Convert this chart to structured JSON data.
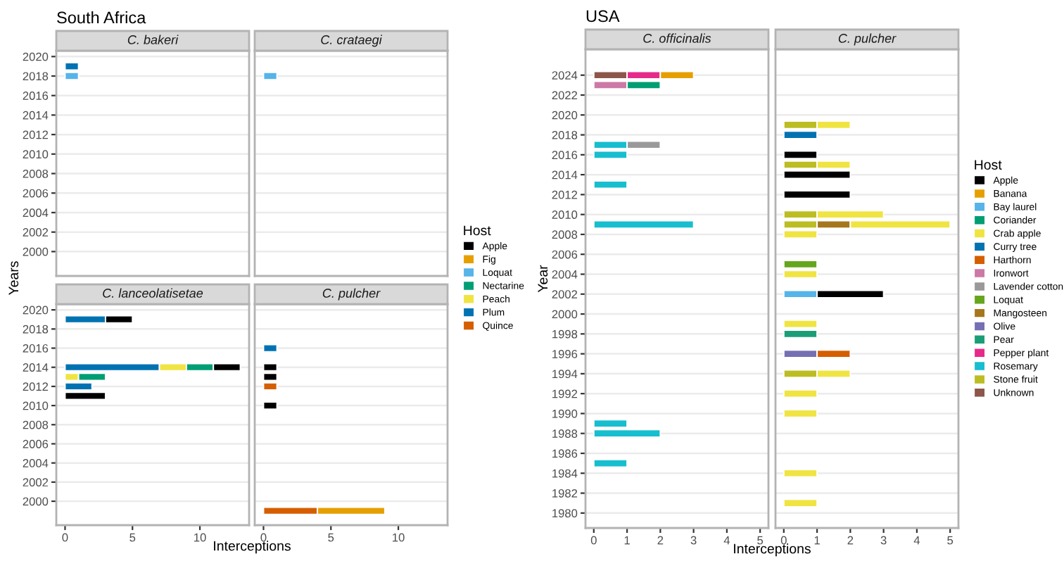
{
  "chart_data": [
    {
      "type": "bar",
      "orientation": "horizontal",
      "stacked": true,
      "title": "C. bakeri",
      "annotations": [
        "South Africa"
      ],
      "legend": "right",
      "legend_title": "Host",
      "x": [
        2019,
        2018
      ],
      "xlim": [
        -0.65,
        13.65
      ],
      "xticks": [
        0,
        5,
        10
      ],
      "ylim": [
        1997.5,
        2020.6
      ],
      "yticks": [
        2000,
        2002,
        2004,
        2006,
        2008,
        2010,
        2012,
        2014,
        2016,
        2018,
        2020
      ],
      "grid": "y",
      "tick_labels": "y",
      "series": [
        {
          "name": "Quince",
          "color": "#d55e00",
          "values": [
            null,
            null
          ]
        },
        {
          "name": "Plum",
          "color": "#0072b2",
          "values": [
            1,
            null
          ]
        },
        {
          "name": "Peach",
          "color": "#f0e442",
          "values": [
            null,
            null
          ]
        },
        {
          "name": "Nectarine",
          "color": "#009e73",
          "values": [
            null,
            null
          ]
        },
        {
          "name": "Loquat",
          "color": "#56b4e9",
          "values": [
            null,
            1
          ]
        },
        {
          "name": "Fig",
          "color": "#e69f00",
          "values": [
            null,
            null
          ]
        },
        {
          "name": "Apple",
          "color": "#000000",
          "values": [
            null,
            null
          ]
        }
      ]
    },
    {
      "type": "bar",
      "orientation": "horizontal",
      "stacked": true,
      "title": "C. crataegi",
      "x": [
        2018
      ],
      "xlim": [
        -0.65,
        13.65
      ],
      "xticks": [
        0,
        5,
        10
      ],
      "ylim": [
        1997.5,
        2020.6
      ],
      "yticks": [
        2000,
        2002,
        2004,
        2006,
        2008,
        2010,
        2012,
        2014,
        2016,
        2018,
        2020
      ],
      "grid": "y",
      "tick_labels": false,
      "series": [
        {
          "color": "#56b4e9",
          "values": [
            1
          ]
        }
      ]
    },
    {
      "type": "bar",
      "orientation": "horizontal",
      "stacked": true,
      "title": "C. lanceolatisetae",
      "xlabel": "Interceptions",
      "ylabel": "Years",
      "x": [
        2019,
        2014,
        2013,
        2012,
        2011
      ],
      "xlim": [
        -0.65,
        13.65
      ],
      "xticks": [
        0,
        5,
        10
      ],
      "ylim": [
        1997.5,
        2020.6
      ],
      "yticks": [
        2000,
        2002,
        2004,
        2006,
        2008,
        2010,
        2012,
        2014,
        2016,
        2018,
        2020
      ],
      "grid": "y",
      "series": [
        {
          "color": "#0072b2",
          "values": [
            3,
            7,
            null,
            2,
            null
          ]
        },
        {
          "color": "#f0e442",
          "values": [
            null,
            2,
            1,
            null,
            null
          ]
        },
        {
          "color": "#009e73",
          "values": [
            null,
            2,
            2,
            null,
            null
          ]
        },
        {
          "color": "#000000",
          "values": [
            2,
            2,
            null,
            null,
            3
          ]
        }
      ]
    },
    {
      "type": "bar",
      "orientation": "horizontal",
      "stacked": true,
      "title": "C. pulcher",
      "x": [
        2016,
        2014,
        2013,
        2012,
        2010,
        1999
      ],
      "xlim": [
        -0.65,
        13.65
      ],
      "xticks": [
        0,
        5,
        10
      ],
      "ylim": [
        1997.5,
        2020.6
      ],
      "yticks": [
        2000,
        2002,
        2004,
        2006,
        2008,
        2010,
        2012,
        2014,
        2016,
        2018,
        2020
      ],
      "grid": "y",
      "tick_labels": "x",
      "series": [
        {
          "color": "#d55e00",
          "values": [
            null,
            null,
            null,
            1,
            null,
            4
          ]
        },
        {
          "color": "#0072b2",
          "values": [
            1,
            null,
            null,
            null,
            null,
            null
          ]
        },
        {
          "color": "#e69f00",
          "values": [
            null,
            null,
            null,
            null,
            null,
            5
          ]
        },
        {
          "color": "#000000",
          "values": [
            null,
            1,
            1,
            null,
            1,
            null
          ]
        }
      ]
    },
    {
      "type": "bar",
      "orientation": "horizontal",
      "stacked": true,
      "title": "C. officinalis",
      "annotations": [
        "USA"
      ],
      "legend": "right",
      "legend_title": "Host",
      "xlabel": "Interceptions",
      "ylabel": "Year",
      "x": [
        2024,
        2023,
        2017,
        2016,
        2013,
        2009,
        1989,
        1988,
        1985
      ],
      "xlim": [
        -0.25,
        5.25
      ],
      "xticks": [
        0,
        1,
        2,
        3,
        4,
        5
      ],
      "ylim": [
        1978.5,
        2026.6
      ],
      "yticks": [
        1980,
        1982,
        1984,
        1986,
        1988,
        1990,
        1992,
        1994,
        1996,
        1998,
        2000,
        2002,
        2004,
        2006,
        2008,
        2010,
        2012,
        2014,
        2016,
        2018,
        2020,
        2022,
        2024
      ],
      "grid": "y",
      "series": [
        {
          "name": "Unknown",
          "color": "#8c564b",
          "values": [
            1,
            null,
            null,
            null,
            null,
            null,
            null,
            null,
            null
          ]
        },
        {
          "name": "Stone fruit",
          "color": "#bcbd22",
          "values": [
            null,
            null,
            null,
            null,
            null,
            null,
            null,
            null,
            null
          ]
        },
        {
          "name": "Rosemary",
          "color": "#17becf",
          "values": [
            null,
            null,
            1,
            1,
            1,
            3,
            1,
            2,
            1
          ]
        },
        {
          "name": "Pepper plant",
          "color": "#e7298a",
          "values": [
            1,
            null,
            null,
            null,
            null,
            null,
            null,
            null,
            null
          ]
        },
        {
          "name": "Pear",
          "color": "#1b9e77",
          "values": [
            null,
            null,
            null,
            null,
            null,
            null,
            null,
            null,
            null
          ]
        },
        {
          "name": "Olive",
          "color": "#7570b3",
          "values": [
            null,
            null,
            null,
            null,
            null,
            null,
            null,
            null,
            null
          ]
        },
        {
          "name": "Mangosteen",
          "color": "#a6761d",
          "values": [
            null,
            null,
            null,
            null,
            null,
            null,
            null,
            null,
            null
          ]
        },
        {
          "name": "Loquat",
          "color": "#66a61e",
          "values": [
            null,
            null,
            null,
            null,
            null,
            null,
            null,
            null,
            null
          ]
        },
        {
          "name": "Lavender cotton",
          "color": "#999999",
          "values": [
            null,
            null,
            1,
            null,
            null,
            null,
            null,
            null,
            null
          ]
        },
        {
          "name": "Ironwort",
          "color": "#cc79a7",
          "values": [
            null,
            1,
            null,
            null,
            null,
            null,
            null,
            null,
            null
          ]
        },
        {
          "name": "Harthorn",
          "color": "#d55e00",
          "values": [
            null,
            null,
            null,
            null,
            null,
            null,
            null,
            null,
            null
          ]
        },
        {
          "name": "Curry tree",
          "color": "#0072b2",
          "values": [
            null,
            null,
            null,
            null,
            null,
            null,
            null,
            null,
            null
          ]
        },
        {
          "name": "Crab apple",
          "color": "#f0e442",
          "values": [
            null,
            null,
            null,
            null,
            null,
            null,
            null,
            null,
            null
          ]
        },
        {
          "name": "Coriander",
          "color": "#009e73",
          "values": [
            null,
            1,
            null,
            null,
            null,
            null,
            null,
            null,
            null
          ]
        },
        {
          "name": "Bay laurel",
          "color": "#56b4e9",
          "values": [
            null,
            null,
            null,
            null,
            null,
            null,
            null,
            null,
            null
          ]
        },
        {
          "name": "Banana",
          "color": "#e69f00",
          "values": [
            1,
            null,
            null,
            null,
            null,
            null,
            null,
            null,
            null
          ]
        },
        {
          "name": "Apple",
          "color": "#000000",
          "values": [
            null,
            null,
            null,
            null,
            null,
            null,
            null,
            null,
            null
          ]
        }
      ]
    },
    {
      "type": "bar",
      "orientation": "horizontal",
      "stacked": true,
      "title": "C. pulcher",
      "x": [
        2019,
        2018,
        2016,
        2015,
        2014,
        2012,
        2010,
        2009,
        2008,
        2005,
        2004,
        2002,
        1999,
        1998,
        1996,
        1994,
        1992,
        1990,
        1984,
        1981
      ],
      "xlim": [
        -0.25,
        5.25
      ],
      "xticks": [
        0,
        1,
        2,
        3,
        4,
        5
      ],
      "ylim": [
        1978.5,
        2026.6
      ],
      "yticks": [
        1980,
        1982,
        1984,
        1986,
        1988,
        1990,
        1992,
        1994,
        1996,
        1998,
        2000,
        2002,
        2004,
        2006,
        2008,
        2010,
        2012,
        2014,
        2016,
        2018,
        2020,
        2022,
        2024
      ],
      "grid": "y",
      "tick_labels": "x",
      "series": [
        {
          "color": "#bcbd22",
          "values": [
            1,
            null,
            null,
            1,
            null,
            null,
            1,
            1,
            null,
            null,
            null,
            null,
            null,
            null,
            null,
            1,
            null,
            null,
            null,
            null
          ]
        },
        {
          "color": "#1b9e77",
          "values": [
            null,
            null,
            null,
            null,
            null,
            null,
            null,
            null,
            null,
            null,
            null,
            null,
            null,
            1,
            null,
            null,
            null,
            null,
            null,
            null
          ]
        },
        {
          "color": "#7570b3",
          "values": [
            null,
            null,
            null,
            null,
            null,
            null,
            null,
            null,
            null,
            null,
            null,
            null,
            null,
            null,
            1,
            null,
            null,
            null,
            null,
            null
          ]
        },
        {
          "color": "#a6761d",
          "values": [
            null,
            null,
            null,
            null,
            null,
            null,
            null,
            1,
            null,
            null,
            null,
            null,
            null,
            null,
            null,
            null,
            null,
            null,
            null,
            null
          ]
        },
        {
          "color": "#66a61e",
          "values": [
            null,
            null,
            null,
            null,
            null,
            null,
            null,
            null,
            null,
            1,
            null,
            null,
            null,
            null,
            null,
            null,
            null,
            null,
            null,
            null
          ]
        },
        {
          "color": "#d55e00",
          "values": [
            null,
            null,
            null,
            null,
            null,
            null,
            null,
            null,
            null,
            null,
            null,
            null,
            null,
            null,
            1,
            null,
            null,
            null,
            null,
            null
          ]
        },
        {
          "color": "#0072b2",
          "values": [
            null,
            1,
            null,
            null,
            null,
            null,
            null,
            null,
            null,
            null,
            null,
            null,
            null,
            null,
            null,
            null,
            null,
            null,
            null,
            null
          ]
        },
        {
          "color": "#f0e442",
          "values": [
            1,
            null,
            null,
            1,
            null,
            null,
            2,
            3,
            1,
            null,
            1,
            null,
            1,
            null,
            null,
            1,
            1,
            1,
            1,
            1
          ]
        },
        {
          "color": "#56b4e9",
          "values": [
            null,
            null,
            null,
            null,
            null,
            null,
            null,
            null,
            null,
            null,
            null,
            1,
            null,
            null,
            null,
            null,
            null,
            null,
            null,
            null
          ]
        },
        {
          "color": "#000000",
          "values": [
            null,
            null,
            1,
            null,
            2,
            2,
            null,
            null,
            null,
            null,
            null,
            2,
            null,
            null,
            null,
            null,
            null,
            null,
            null,
            null
          ]
        }
      ]
    }
  ]
}
